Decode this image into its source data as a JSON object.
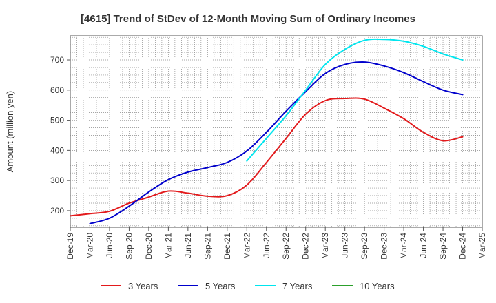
{
  "chart_data": {
    "type": "line",
    "title": "[4615]  Trend of StDev of 12-Month Moving Sum of Ordinary Incomes",
    "xlabel": "",
    "ylabel": "Amount (million yen)",
    "ylim": [
      145,
      780
    ],
    "yticks": [
      200,
      300,
      400,
      500,
      600,
      700
    ],
    "grid": true,
    "legend_position": "bottom",
    "categories": [
      "Dec-19",
      "Mar-20",
      "Jun-20",
      "Sep-20",
      "Dec-20",
      "Mar-21",
      "Jun-21",
      "Sep-21",
      "Dec-21",
      "Mar-22",
      "Jun-22",
      "Sep-22",
      "Dec-22",
      "Mar-23",
      "Jun-23",
      "Sep-23",
      "Dec-23",
      "Mar-24",
      "Jun-24",
      "Sep-24",
      "Dec-24",
      "Mar-25"
    ],
    "series": [
      {
        "name": "3 Years",
        "color": "#e31a1c",
        "values": [
          183,
          190,
          198,
          225,
          245,
          265,
          258,
          248,
          250,
          285,
          360,
          440,
          520,
          565,
          572,
          570,
          540,
          505,
          460,
          432,
          445,
          null
        ]
      },
      {
        "name": "5 Years",
        "color": "#0000cc",
        "values": [
          null,
          157,
          175,
          215,
          262,
          303,
          328,
          343,
          360,
          398,
          460,
          530,
          595,
          655,
          685,
          693,
          680,
          658,
          628,
          600,
          585,
          null
        ]
      },
      {
        "name": "7 Years",
        "color": "#00e5ee",
        "values": [
          null,
          null,
          null,
          null,
          null,
          null,
          null,
          null,
          null,
          365,
          440,
          515,
          600,
          685,
          735,
          765,
          768,
          762,
          745,
          720,
          700,
          null
        ]
      },
      {
        "name": "10 Years",
        "color": "#2ca02c",
        "values": [
          null,
          null,
          null,
          null,
          null,
          null,
          null,
          null,
          null,
          null,
          null,
          null,
          null,
          null,
          null,
          null,
          null,
          null,
          null,
          null,
          null,
          null
        ]
      }
    ]
  }
}
